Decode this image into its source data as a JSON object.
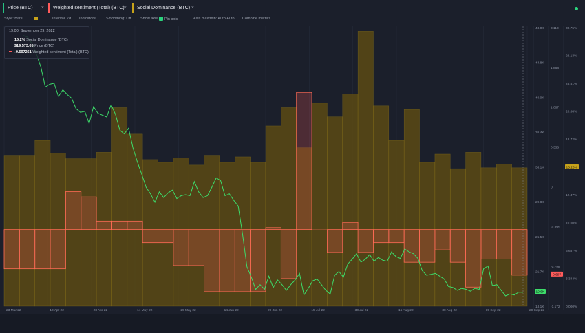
{
  "tabs": [
    {
      "label": "Price (BTC)",
      "color": "#26c281"
    },
    {
      "label": "Weighted sentiment (Total) (BTC)",
      "color": "#ff5b5b"
    },
    {
      "label": "Social Dominance (BTC)",
      "color": "#c7a21a"
    }
  ],
  "close_glyph": "×",
  "toolbar": {
    "style": "Style: Bars",
    "interval": "Interval: 7d",
    "indicators": "Indicators",
    "smoothing": "Smoothing: Off",
    "show_axis": "Show axis",
    "pin_axis": "Pin axis",
    "axis_max_min": "Axis max/min: Auto/Auto",
    "combine": "Combine metrics"
  },
  "tooltip": {
    "date": "19:00, September 29, 2022",
    "rows": [
      {
        "value": "15.2%",
        "label": "Social Dominance (BTC)",
        "color": "#c7a21a"
      },
      {
        "value": "$19,573.05",
        "label": "Price (BTC)",
        "color": "#26c281"
      },
      {
        "value": "-0.697261",
        "label": "Weighted sentiment (Total) (BTC)",
        "color": "#ff5b5b"
      }
    ]
  },
  "chart_data": {
    "type": "bar",
    "x_ticks": [
      "23 Mar 22",
      "10 Apr 22",
      "28 Apr 22",
      "14 May 22",
      "29 May 22",
      "14 Jun 22",
      "29 Jun 22",
      "15 Jul 22",
      "30 Jul 22",
      "15 Aug 22",
      "30 Aug 22",
      "15 Sep 22",
      "29 Sep 22"
    ],
    "series": [
      {
        "name": "Social Dominance (BTC)",
        "type": "bar",
        "color": "#c7a21a",
        "axis_ticks": [
          "30.75%",
          "28.13%",
          "25.61%",
          "20.88%",
          "18.72%",
          "15.20%",
          "12.37%",
          "10.00%",
          "6.687%",
          "3.344%",
          "0.000%"
        ],
        "values": [
          16.5,
          16.5,
          18.2,
          16.8,
          16.2,
          16.2,
          16.9,
          21.8,
          18.9,
          16.1,
          15.8,
          16.3,
          15.5,
          16.5,
          15.8,
          16.4,
          15.8,
          19.8,
          21.8,
          17.4,
          22.3,
          20.8,
          23.3,
          30.2,
          22.0,
          18.2,
          21.6,
          15.8,
          16.7,
          15.1,
          16.9,
          15.2,
          15.6,
          15.2
        ]
      },
      {
        "name": "Weighted sentiment (Total) (BTC)",
        "type": "bar",
        "color": "#ff5b5b",
        "axis_ticks": [
          "3.113",
          "1.868",
          "1.087",
          "0.336",
          "0",
          "-0.395",
          "-0.798",
          "-1.172"
        ],
        "values": [
          -0.6,
          -0.6,
          -0.6,
          -0.6,
          0.58,
          0.5,
          0.13,
          0.13,
          0.13,
          -0.2,
          -0.2,
          -0.55,
          -0.55,
          -0.95,
          -0.95,
          -0.95,
          -0.95,
          0.03,
          -0.75,
          2.1,
          0.0,
          -0.35,
          0.11,
          -0.35,
          -0.2,
          -0.2,
          -0.5,
          -0.5,
          -0.31,
          -0.5,
          -0.88,
          -0.45,
          -0.45,
          -0.697
        ]
      },
      {
        "name": "Price (BTC)",
        "type": "line",
        "color": "#26c281",
        "axis_ticks": [
          "48.0K",
          "44.8K",
          "40.0K",
          "36.4K",
          "33.1K",
          "29.8K",
          "25.5K",
          "21.7K",
          "18.1K"
        ],
        "values": [
          47000,
          46800,
          46100,
          45000,
          43600,
          41500,
          41800,
          41900,
          40500,
          41200,
          40700,
          40300,
          39200,
          38800,
          38900,
          37600,
          39400,
          38700,
          38500,
          38300,
          39600,
          38600,
          36900,
          36500,
          37100,
          35000,
          33500,
          32200,
          30800,
          30100,
          29200,
          30300,
          29700,
          30200,
          30500,
          29600,
          29900,
          30000,
          29900,
          31400,
          30300,
          29700,
          29900,
          30800,
          31800,
          31500,
          29900,
          30100,
          29400,
          28800,
          25800,
          22300,
          21200,
          19900,
          20400,
          19900,
          21300,
          20100,
          20900,
          20400,
          19800,
          20400,
          20900,
          21600,
          19300,
          20000,
          20800,
          21000,
          20400,
          19800,
          19400,
          21400,
          21800,
          21200,
          22600,
          23100,
          23700,
          22800,
          23100,
          23600,
          22900,
          23300,
          23000,
          22900,
          23900,
          23400,
          23200,
          24200,
          23900,
          23700,
          23200,
          21900,
          21400,
          21500,
          21600,
          21300,
          21000,
          20200,
          20100,
          19800,
          20000,
          19900,
          19700,
          20000,
          19900,
          22100,
          22400,
          20300,
          20400,
          19800,
          19200,
          19400,
          19300,
          19600,
          19573
        ],
        "ylim": [
          18100,
          48000
        ]
      }
    ],
    "current_labels": {
      "social": "15.20%",
      "sentiment": "-0.697",
      "price": "19.6K"
    },
    "zero_line": "0"
  }
}
